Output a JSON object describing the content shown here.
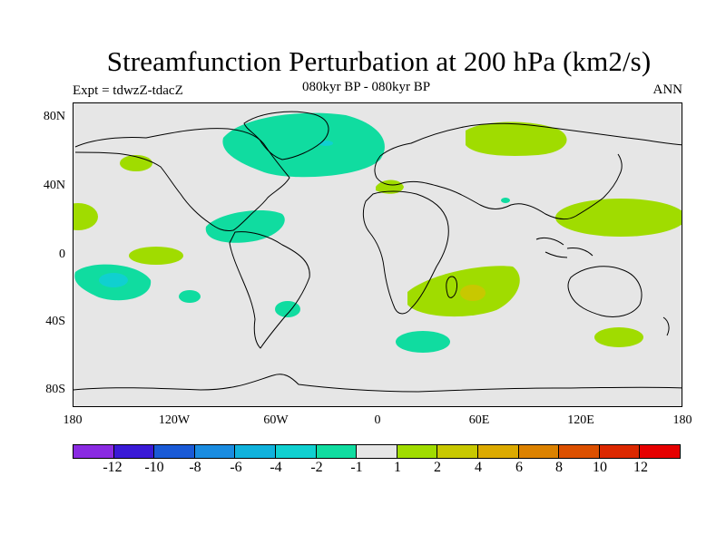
{
  "header": {
    "title": "Streamfunction Perturbation at 200 hPa (km2/s)",
    "experiment": "Expt = tdwzZ-tdacZ",
    "period": "080kyr BP - 080kyr BP",
    "season": "ANN"
  },
  "axes": {
    "lat_ticks": [
      "80N",
      "40N",
      "0",
      "40S",
      "80S"
    ],
    "lon_ticks": [
      "180",
      "120W",
      "60W",
      "0",
      "60E",
      "120E",
      "180"
    ]
  },
  "colorbar": {
    "labels": [
      "-12",
      "-10",
      "-8",
      "-6",
      "-4",
      "-2",
      "-1",
      "1",
      "2",
      "4",
      "6",
      "8",
      "10",
      "12"
    ],
    "colors": [
      "#8a2be2",
      "#3a1ad6",
      "#1a5ad6",
      "#1a8ce0",
      "#10b2dc",
      "#10d0d0",
      "#10dca0",
      "#e6e6e6",
      "#a0dc00",
      "#c8c800",
      "#dcaa00",
      "#dc8200",
      "#dc5000",
      "#dc2800",
      "#e60000"
    ]
  },
  "map": {
    "background_color": "#e6e6e6",
    "negative_fill": "#10dca0",
    "positive_fill": "#a0dc00"
  }
}
